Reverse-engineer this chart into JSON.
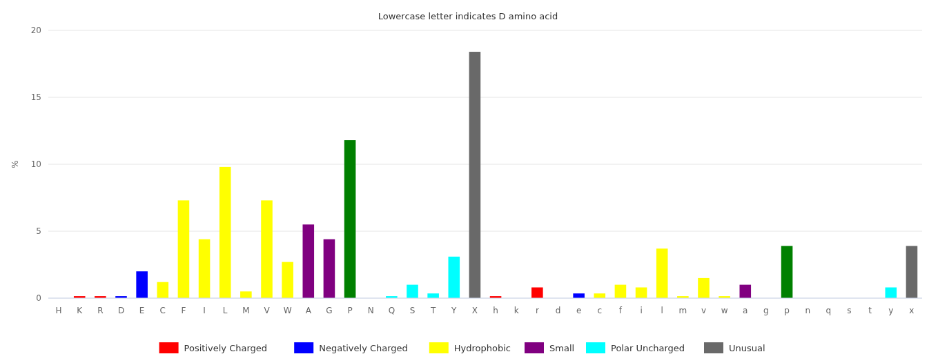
{
  "chart_data": {
    "type": "bar",
    "title": "Lowercase letter indicates D amino acid",
    "ylabel": "%",
    "categories": [
      "H",
      "K",
      "R",
      "D",
      "E",
      "C",
      "F",
      "I",
      "L",
      "M",
      "V",
      "W",
      "A",
      "G",
      "P",
      "N",
      "Q",
      "S",
      "T",
      "Y",
      "X",
      "h",
      "k",
      "r",
      "d",
      "e",
      "c",
      "f",
      "i",
      "l",
      "m",
      "v",
      "w",
      "a",
      "g",
      "p",
      "n",
      "q",
      "s",
      "t",
      "y",
      "x"
    ],
    "series": [
      {
        "name": "Positively Charged",
        "color": "#ff0000",
        "values": [
          0,
          0.15,
          0.15,
          null,
          null,
          null,
          null,
          null,
          null,
          null,
          null,
          null,
          null,
          null,
          null,
          null,
          null,
          null,
          null,
          null,
          null,
          0.15,
          0,
          0.8,
          null,
          null,
          null,
          null,
          null,
          null,
          null,
          null,
          null,
          null,
          null,
          null,
          null,
          null,
          null,
          null,
          null,
          null
        ]
      },
      {
        "name": "Negatively Charged",
        "color": "#0000ff",
        "values": [
          null,
          null,
          null,
          0.15,
          2.0,
          null,
          null,
          null,
          null,
          null,
          null,
          null,
          null,
          null,
          null,
          null,
          null,
          null,
          null,
          null,
          null,
          null,
          null,
          null,
          0,
          0.35,
          null,
          null,
          null,
          null,
          null,
          null,
          null,
          null,
          null,
          null,
          null,
          null,
          null,
          null,
          null,
          null
        ]
      },
      {
        "name": "Hydrophobic",
        "color": "#ffff00",
        "values": [
          null,
          null,
          null,
          null,
          null,
          1.2,
          7.3,
          4.4,
          9.8,
          0.5,
          7.3,
          2.7,
          null,
          null,
          null,
          null,
          null,
          null,
          null,
          null,
          null,
          null,
          null,
          null,
          null,
          null,
          0.35,
          1.0,
          0.8,
          3.7,
          0.15,
          1.5,
          0.15,
          null,
          null,
          null,
          null,
          null,
          null,
          null,
          null,
          null
        ]
      },
      {
        "name": "Small",
        "color": "#800080",
        "values": [
          null,
          null,
          null,
          null,
          null,
          null,
          null,
          null,
          null,
          null,
          null,
          null,
          5.5,
          4.4,
          null,
          null,
          null,
          null,
          null,
          null,
          null,
          null,
          null,
          null,
          null,
          null,
          null,
          null,
          null,
          null,
          null,
          null,
          null,
          1.0,
          0,
          null,
          null,
          null,
          null,
          null,
          null,
          null
        ]
      },
      {
        "color": "#008000",
        "values": [
          null,
          null,
          null,
          null,
          null,
          null,
          null,
          null,
          null,
          null,
          null,
          null,
          null,
          null,
          11.8,
          null,
          null,
          null,
          null,
          null,
          null,
          null,
          null,
          null,
          null,
          null,
          null,
          null,
          null,
          null,
          null,
          null,
          null,
          null,
          null,
          3.9,
          null,
          null,
          null,
          null,
          null,
          null
        ]
      },
      {
        "name": "Polar Uncharged",
        "color": "#00ffff",
        "values": [
          null,
          null,
          null,
          null,
          null,
          null,
          null,
          null,
          null,
          null,
          null,
          null,
          null,
          null,
          null,
          0,
          0.15,
          1.0,
          0.35,
          3.1,
          null,
          null,
          null,
          null,
          null,
          null,
          null,
          null,
          null,
          null,
          null,
          null,
          null,
          null,
          null,
          null,
          0,
          0,
          0,
          0,
          0.8,
          null
        ]
      },
      {
        "name": "Unusual",
        "color": "#696969",
        "values": [
          null,
          null,
          null,
          null,
          null,
          null,
          null,
          null,
          null,
          null,
          null,
          null,
          null,
          null,
          null,
          null,
          null,
          null,
          null,
          null,
          18.4,
          null,
          null,
          null,
          null,
          null,
          null,
          null,
          null,
          null,
          null,
          null,
          null,
          null,
          null,
          null,
          null,
          null,
          null,
          null,
          null,
          3.9
        ]
      }
    ],
    "ylim": [
      0,
      20
    ],
    "yticks": [
      0,
      5,
      10,
      15,
      20
    ],
    "grid": "y",
    "legend": "bottom"
  }
}
